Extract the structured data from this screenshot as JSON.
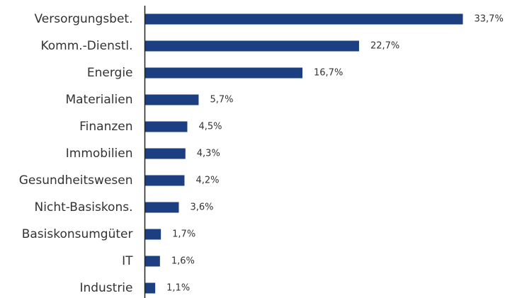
{
  "chart_data": {
    "type": "bar",
    "orientation": "horizontal",
    "title": "",
    "xlabel": "",
    "ylabel": "",
    "categories": [
      "Versorgungsbet.",
      "Komm.-Dienstl.",
      "Energie",
      "Materialien",
      "Finanzen",
      "Immobilien",
      "Gesundheitswesen",
      "Nicht-Basiskons.",
      "Basiskonsumgüter",
      "IT",
      "Industrie"
    ],
    "values": [
      33.7,
      22.7,
      16.7,
      5.7,
      4.5,
      4.3,
      4.2,
      3.6,
      1.7,
      1.6,
      1.1
    ],
    "value_labels": [
      "33,7%",
      "22,7%",
      "16,7%",
      "5,7%",
      "4,5%",
      "4,3%",
      "4,2%",
      "3,6%",
      "1,7%",
      "1,6%",
      "1,1%"
    ],
    "xlim": [
      0,
      33.7
    ],
    "grid": false,
    "legend": "none",
    "bar_color": "#1b3f80",
    "axis_color": "#222222",
    "label_color": "#333333"
  }
}
